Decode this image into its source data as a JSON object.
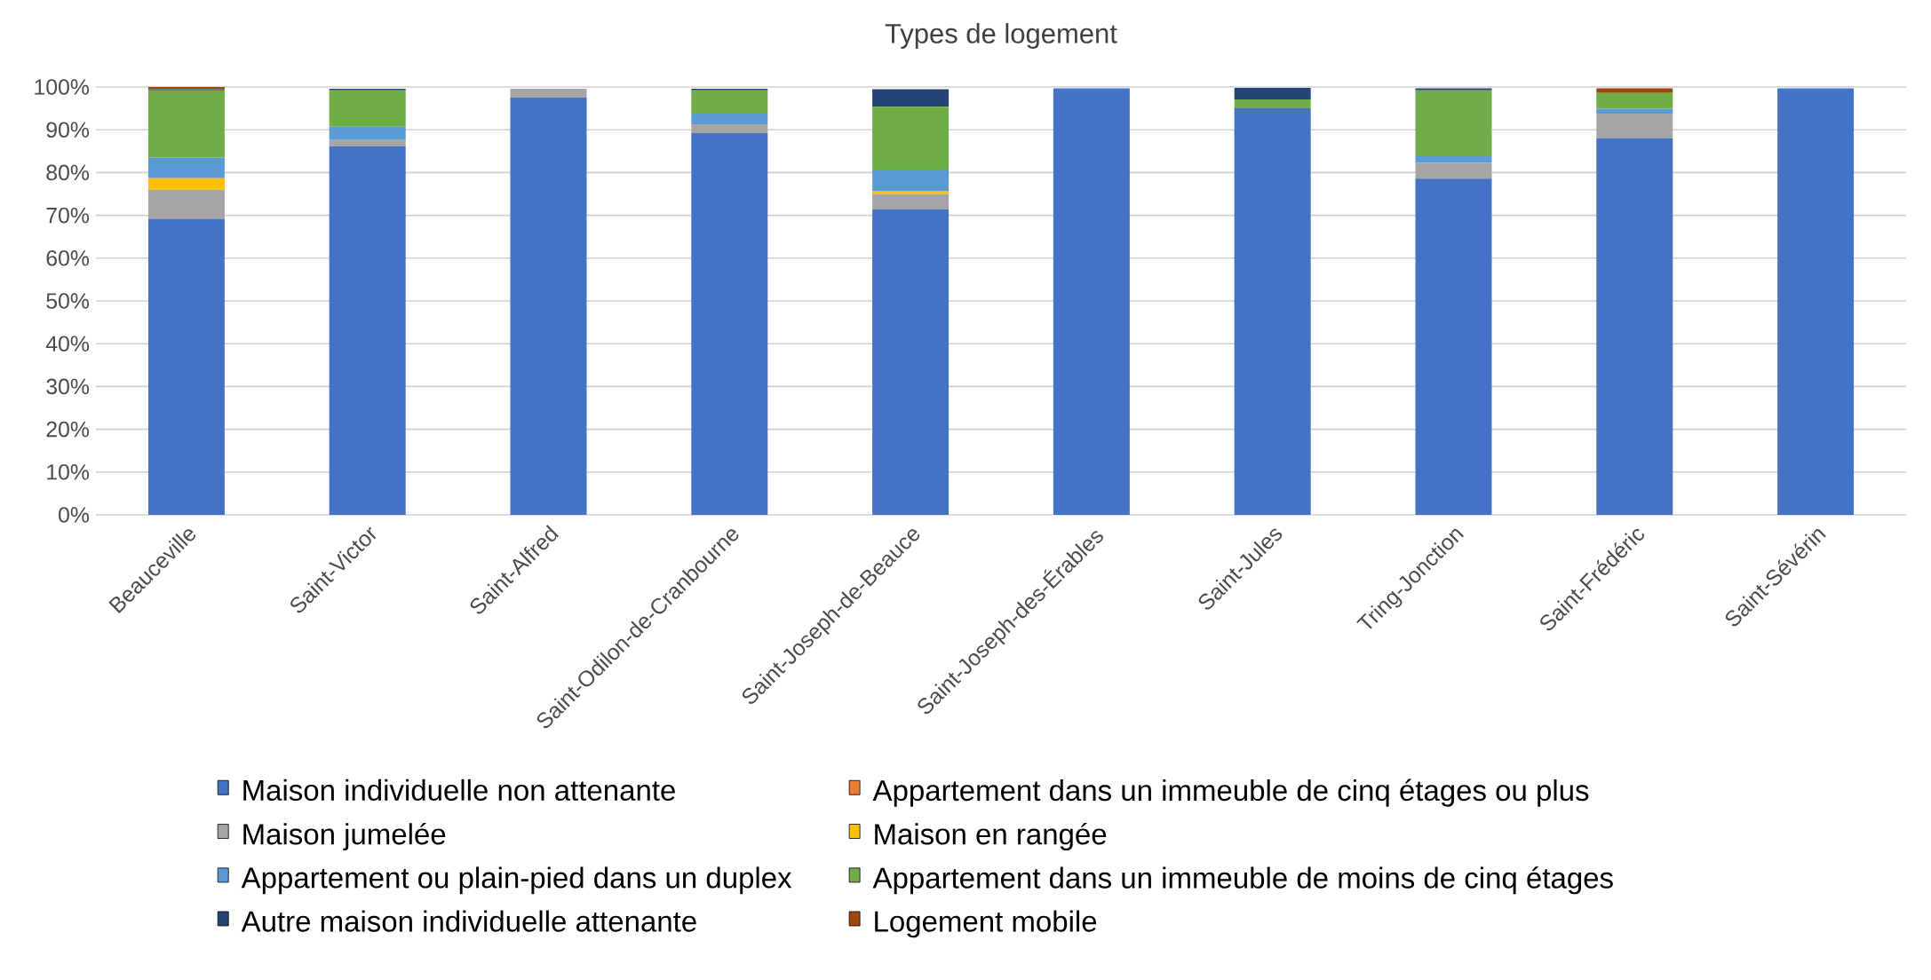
{
  "chart_data": {
    "type": "bar",
    "stacked": true,
    "title": "Types de logement",
    "categories": [
      "Beauceville",
      "Saint-Victor",
      "Saint-Alfred",
      "Saint-Odilon-de-Cranbourne",
      "Saint-Joseph-de-Beauce",
      "Saint-Joseph-des-Érables",
      "Saint-Jules",
      "Tring-Jonction",
      "Saint-Frédéric",
      "Saint-Sévérin"
    ],
    "series": [
      {
        "name": "Maison individuelle non attenante",
        "color": "#4472c4",
        "values": [
          69.2,
          86.1,
          97.5,
          89.2,
          71.4,
          99.7,
          95.0,
          78.6,
          88.0,
          99.7
        ]
      },
      {
        "name": "Appartement dans un immeuble de cinq étages ou plus",
        "color": "#ed7d31",
        "values": [
          0,
          0,
          0,
          0,
          0,
          0,
          0,
          0,
          0,
          0
        ]
      },
      {
        "name": "Maison jumelée",
        "color": "#a5a5a5",
        "values": [
          6.8,
          1.5,
          2.1,
          2.1,
          3.6,
          0,
          0,
          3.7,
          5.8,
          0
        ]
      },
      {
        "name": "Maison en rangée",
        "color": "#ffc000",
        "values": [
          2.7,
          0,
          0,
          0,
          0.7,
          0,
          0,
          0,
          0,
          0
        ]
      },
      {
        "name": "Appartement ou plain-pied dans un duplex",
        "color": "#5b9bd5",
        "values": [
          4.8,
          3.1,
          0,
          2.5,
          5.0,
          0,
          0,
          1.5,
          1.1,
          0
        ]
      },
      {
        "name": "Appartement dans un immeuble de moins de cinq étages",
        "color": "#70ad47",
        "values": [
          15.7,
          8.5,
          0,
          5.4,
          14.7,
          0,
          2.1,
          15.4,
          3.7,
          0
        ]
      },
      {
        "name": "Autre maison individuelle attenante",
        "color": "#264478",
        "values": [
          0.3,
          0.4,
          0,
          0.4,
          4.1,
          0,
          2.7,
          0.5,
          0,
          0
        ]
      },
      {
        "name": "Logement mobile",
        "color": "#9e480e",
        "values": [
          0.5,
          0,
          0,
          0,
          0,
          0,
          0,
          0,
          1.1,
          0
        ]
      }
    ],
    "ylim": [
      0,
      100
    ],
    "yticks": [
      {
        "value": 0,
        "label": "0%"
      },
      {
        "value": 10,
        "label": "10%"
      },
      {
        "value": 20,
        "label": "20%"
      },
      {
        "value": 30,
        "label": "30%"
      },
      {
        "value": 40,
        "label": "40%"
      },
      {
        "value": 50,
        "label": "50%"
      },
      {
        "value": 60,
        "label": "60%"
      },
      {
        "value": 70,
        "label": "70%"
      },
      {
        "value": 80,
        "label": "80%"
      },
      {
        "value": 90,
        "label": "90%"
      },
      {
        "value": 100,
        "label": "100%"
      }
    ],
    "grid": "y",
    "legend": "bottom"
  }
}
